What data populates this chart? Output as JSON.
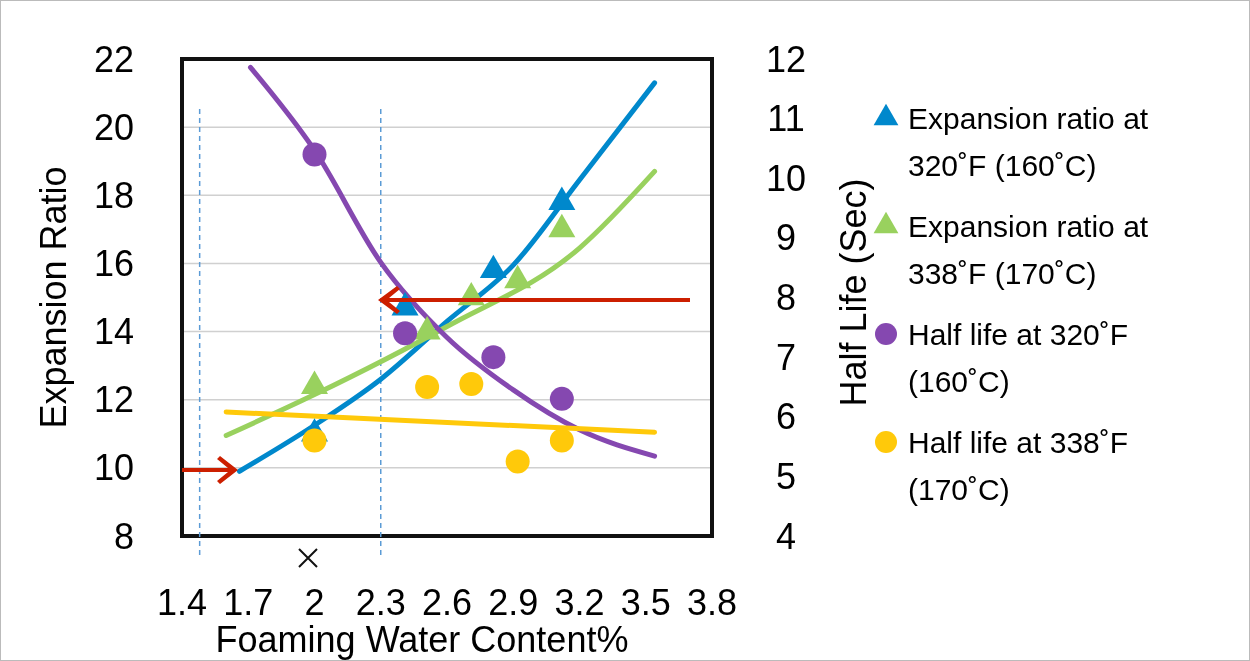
{
  "chart_data": {
    "type": "scatter",
    "xlabel": "Foaming Water Content%",
    "ylabel": "Expansion Ratio",
    "y2label": "Half Life (Sec)",
    "xlim": [
      1.4,
      3.8
    ],
    "xticks": [
      1.4,
      1.7,
      2,
      2.3,
      2.6,
      2.9,
      3.2,
      3.5,
      3.8
    ],
    "ylim": [
      8,
      22
    ],
    "yticks": [
      8,
      10,
      12,
      14,
      16,
      18,
      20,
      22
    ],
    "y2lim": [
      4,
      12
    ],
    "y2ticks": [
      4,
      5,
      6,
      7,
      8,
      9,
      10,
      11,
      12
    ],
    "grid": "y",
    "legend": "right",
    "ref_lines": [
      {
        "axis": "x",
        "value": 1.48,
        "color": "#5b9bd5",
        "line_style": "dashed"
      },
      {
        "axis": "x",
        "value": 2.3,
        "color": "#5b9bd5",
        "line_style": "dashed"
      }
    ],
    "series": [
      {
        "name": "Expansion ratio at 320˚F (160˚C)",
        "marker": "triangle",
        "color": "#0088cc",
        "x": [
          2.0,
          2.41,
          2.81,
          3.12
        ],
        "values": [
          11.0,
          14.7,
          15.8,
          17.8
        ]
      },
      {
        "name": "Expansion ratio at 338˚F (170˚C)",
        "marker": "triangle",
        "color": "#99d15e",
        "x": [
          2.0,
          2.51,
          2.71,
          2.92,
          3.12
        ],
        "values": [
          12.4,
          14.0,
          15.0,
          15.5,
          17.0
        ]
      },
      {
        "name": "Half life at 320˚F (160˚C)",
        "marker": "circle",
        "axis": "y2",
        "color": "#8548b0",
        "x": [
          2.0,
          2.41,
          2.81,
          3.12
        ],
        "values": [
          10.4,
          7.4,
          7.0,
          6.3
        ]
      },
      {
        "name": "Half life at 338˚F (170˚C)",
        "marker": "circle",
        "axis": "y2",
        "color": "#ffc90a",
        "x": [
          2.0,
          2.51,
          2.71,
          2.92,
          3.12
        ],
        "values": [
          5.6,
          6.5,
          6.55,
          5.25,
          5.6
        ]
      },
      {
        "type": "line",
        "color": "#0088cc",
        "x": [
          1.66,
          2.0,
          2.3,
          2.6,
          2.9,
          3.2,
          3.54
        ],
        "values": [
          9.9,
          11.25,
          12.6,
          14.3,
          15.95,
          18.45,
          21.3
        ]
      },
      {
        "type": "line",
        "color": "#99d15e",
        "x": [
          1.6,
          2.0,
          2.6,
          3.2,
          3.54
        ],
        "values": [
          10.95,
          12.15,
          14.15,
          16.45,
          18.7
        ]
      },
      {
        "type": "line",
        "axis": "y2",
        "color": "#8548b0",
        "x": [
          1.71,
          2.0,
          2.3,
          2.6,
          2.9,
          3.2,
          3.54
        ],
        "values": [
          11.86,
          10.47,
          8.59,
          7.33,
          6.45,
          5.78,
          5.34
        ]
      },
      {
        "type": "line",
        "axis": "y2",
        "color": "#ffc90a",
        "x": [
          1.6,
          3.54
        ],
        "values": [
          6.08,
          5.74
        ]
      }
    ]
  }
}
